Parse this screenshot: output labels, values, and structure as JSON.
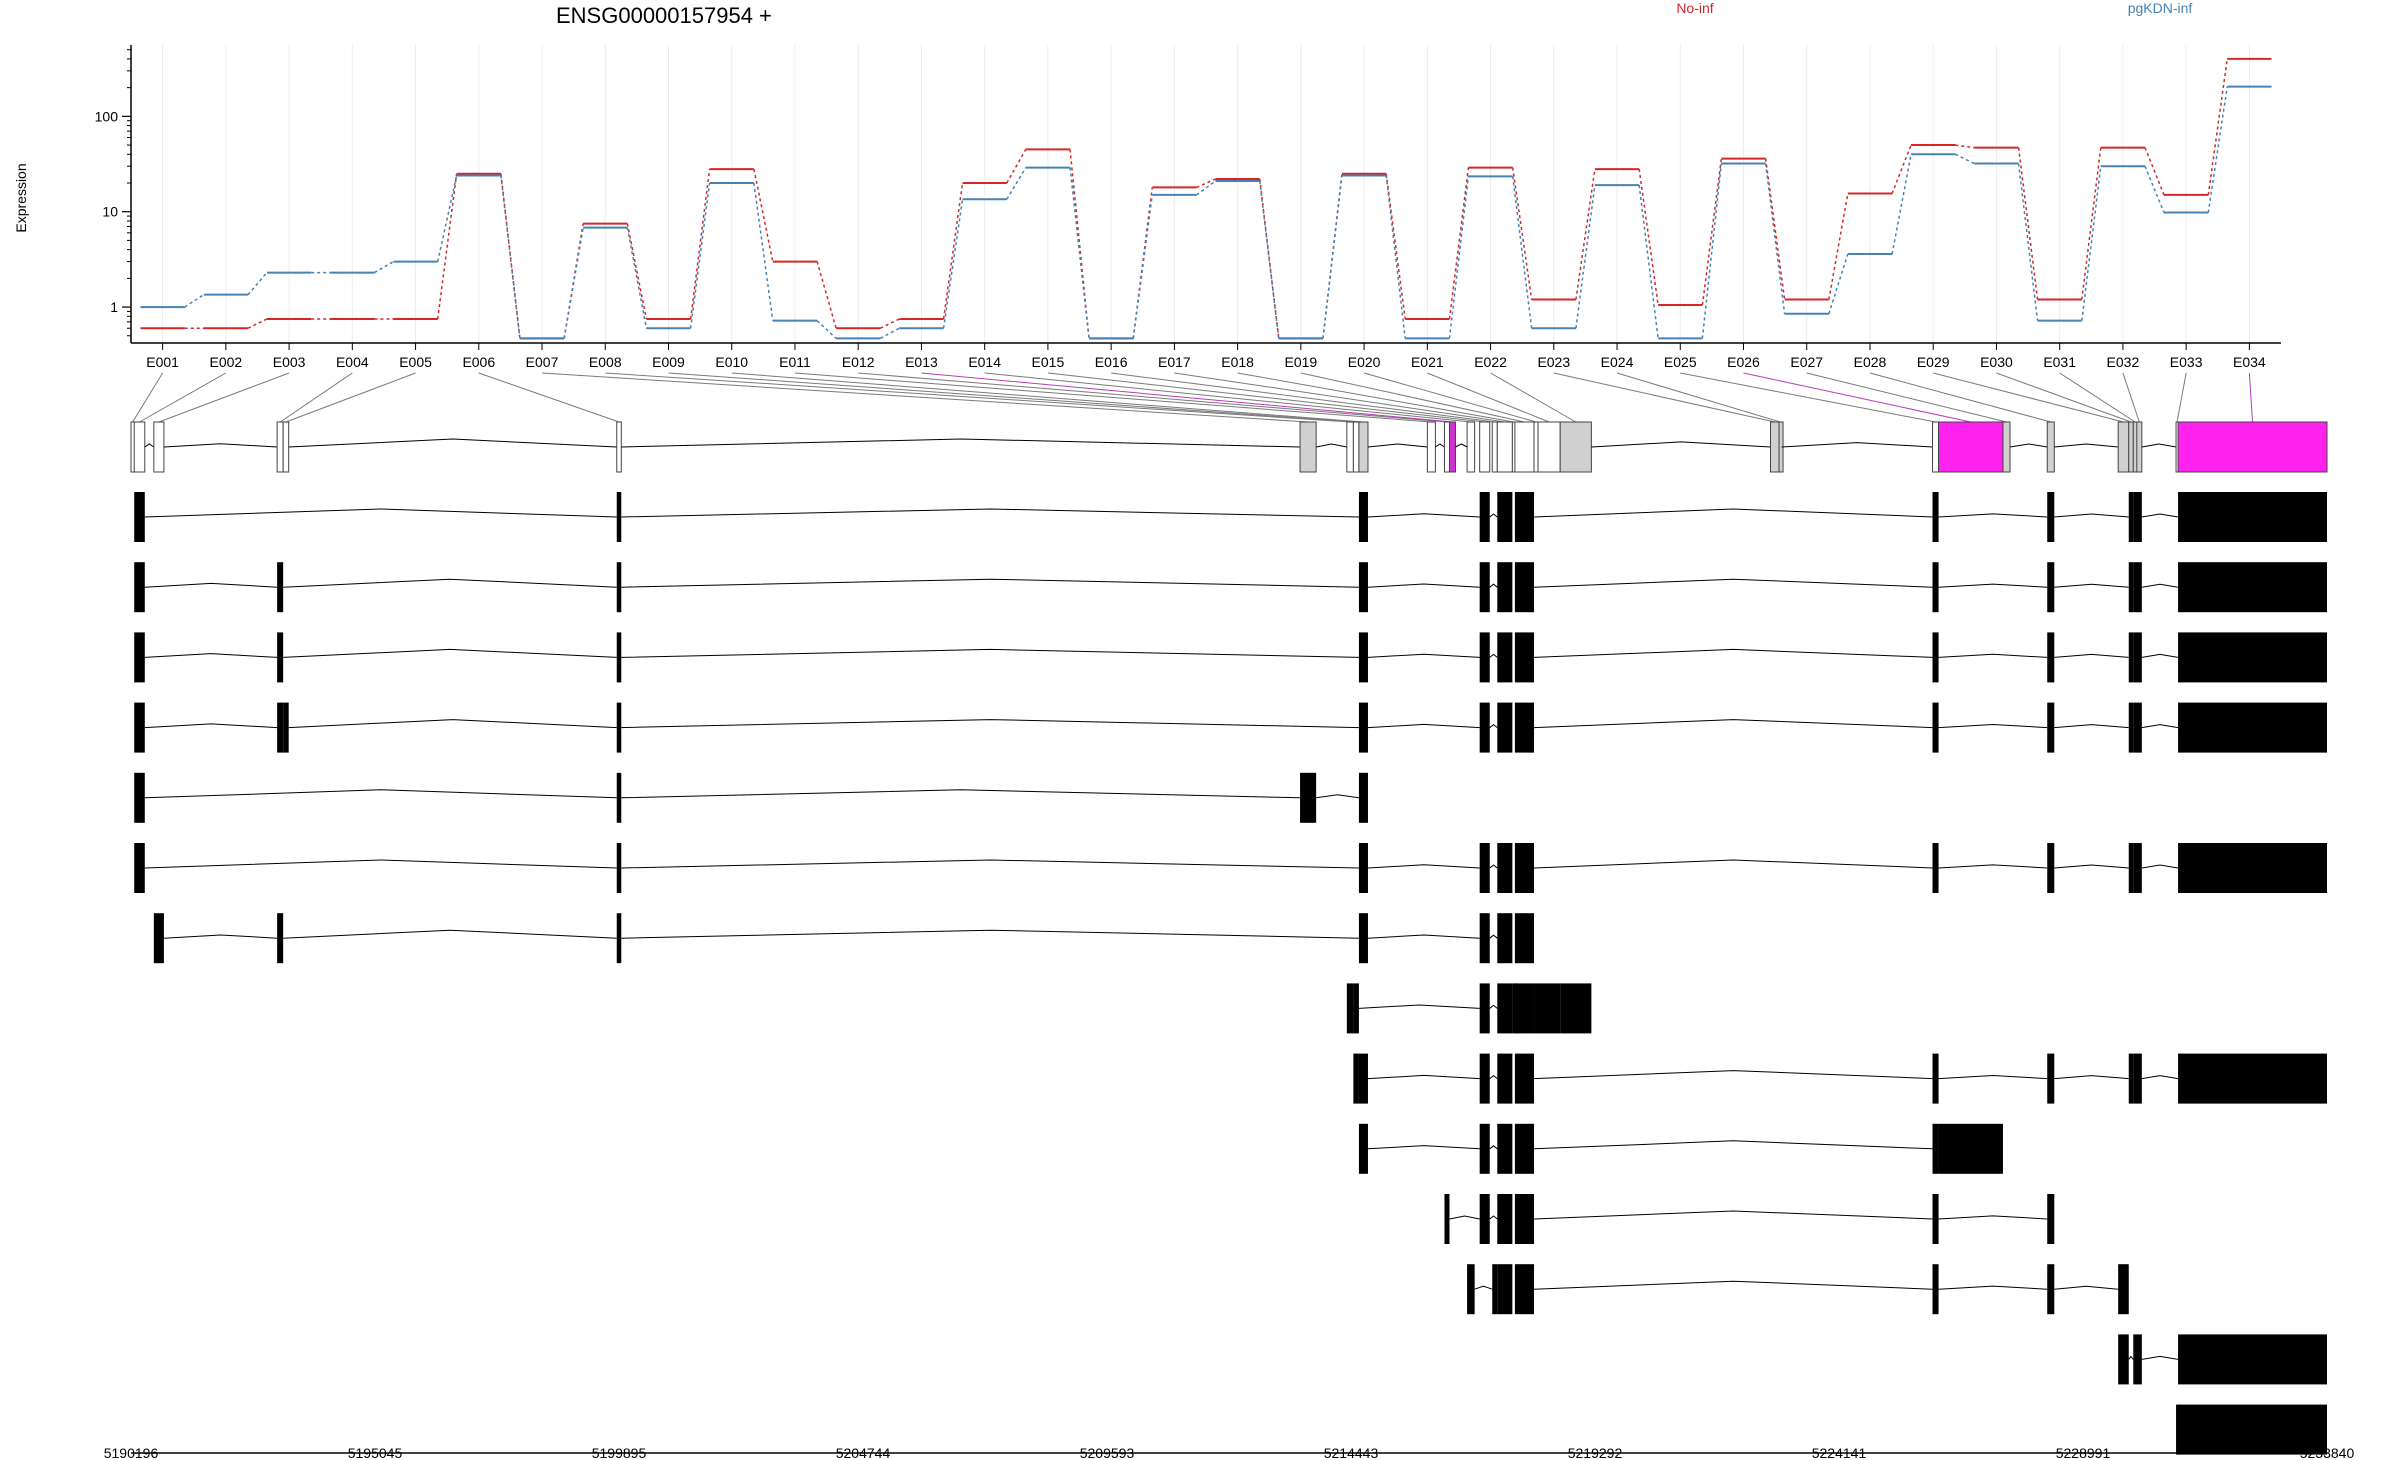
{
  "chart_data": {
    "type": "line",
    "title": "ENSG00000157954 +",
    "xlabel": "",
    "ylabel": "Expression",
    "y_scale": "log",
    "yticks": [
      "1",
      "10",
      "100"
    ],
    "grid": true,
    "legend_placement": "top",
    "series": [
      {
        "name": "No-inf",
        "color": "#d62728",
        "values": [
          0.6,
          0.6,
          0.75,
          0.75,
          0.75,
          25,
          0.47,
          7.5,
          0.75,
          28,
          3,
          0.6,
          0.75,
          20,
          45,
          0.47,
          18,
          22,
          0.47,
          25,
          0.75,
          29,
          1.2,
          28,
          1.05,
          36,
          1.2,
          15.5,
          50,
          47,
          1.2,
          47,
          15,
          400
        ]
      },
      {
        "name": "pgKDN-inf",
        "color": "#4682b4",
        "values": [
          1.0,
          1.35,
          2.3,
          2.3,
          3.0,
          24,
          0.47,
          6.8,
          0.6,
          20,
          0.72,
          0.47,
          0.6,
          13.5,
          29,
          0.47,
          15,
          21,
          0.47,
          24,
          0.47,
          23.5,
          0.6,
          19,
          0.47,
          32,
          0.85,
          3.6,
          40,
          32,
          0.72,
          30,
          9.8,
          205
        ]
      }
    ],
    "exons": [
      {
        "id": "E001",
        "start": 5190196,
        "end": 5190260
      },
      {
        "id": "E002",
        "start": 5190260,
        "end": 5190470
      },
      {
        "id": "E003",
        "start": 5190650,
        "end": 5190850
      },
      {
        "id": "E004",
        "start": 5193100,
        "end": 5193220
      },
      {
        "id": "E005",
        "start": 5193220,
        "end": 5193330
      },
      {
        "id": "E006",
        "start": 5199850,
        "end": 5199940
      },
      {
        "id": "E007",
        "start": 5213430,
        "end": 5213750
      },
      {
        "id": "E008",
        "start": 5214360,
        "end": 5214490
      },
      {
        "id": "E009",
        "start": 5214490,
        "end": 5214600
      },
      {
        "id": "E010",
        "start": 5214600,
        "end": 5214780
      },
      {
        "id": "E011",
        "start": 5215960,
        "end": 5216120
      },
      {
        "id": "E012",
        "start": 5216300,
        "end": 5216400
      },
      {
        "id": "E013",
        "start": 5216400,
        "end": 5216520
      },
      {
        "id": "E014",
        "start": 5216750,
        "end": 5216900
      },
      {
        "id": "E015",
        "start": 5217000,
        "end": 5217200
      },
      {
        "id": "E016",
        "start": 5217250,
        "end": 5217350
      },
      {
        "id": "E017",
        "start": 5217350,
        "end": 5217650
      },
      {
        "id": "E018",
        "start": 5217650,
        "end": 5217700
      },
      {
        "id": "E019",
        "start": 5217700,
        "end": 5218080
      },
      {
        "id": "E020",
        "start": 5218080,
        "end": 5218160
      },
      {
        "id": "E021",
        "start": 5218160,
        "end": 5218600
      },
      {
        "id": "E022",
        "start": 5218600,
        "end": 5219220
      },
      {
        "id": "E023",
        "start": 5222780,
        "end": 5222950
      },
      {
        "id": "E024",
        "start": 5222950,
        "end": 5223000
      },
      {
        "id": "E025",
        "start": 5226000,
        "end": 5226120
      },
      {
        "id": "E026",
        "start": 5226120,
        "end": 5227400
      },
      {
        "id": "E027",
        "start": 5227400,
        "end": 5227540
      },
      {
        "id": "E028",
        "start": 5228280,
        "end": 5228420
      },
      {
        "id": "E029",
        "start": 5229690,
        "end": 5229900
      },
      {
        "id": "E030",
        "start": 5229900,
        "end": 5229990
      },
      {
        "id": "E031",
        "start": 5229990,
        "end": 5230060
      },
      {
        "id": "E032",
        "start": 5230060,
        "end": 5230160
      },
      {
        "id": "E033",
        "start": 5230840,
        "end": 5230880
      },
      {
        "id": "E034",
        "start": 5230880,
        "end": 5233840
      }
    ],
    "gene_model_colors": {
      "E003": "#ffffff",
      "E007": "#d0d0d0",
      "E008": "#ffffff",
      "E009": "#ffffff",
      "E010": "#d0d0d0",
      "E011": "#ffffff",
      "E013": "#cc33cc",
      "E014": "#ffffff",
      "E021": "#ffffff",
      "E022": "#d0d0d0",
      "E023": "#d0d0d0",
      "E024": "#d0d0d0",
      "E026": "#ff22ee",
      "E027": "#d0d0d0",
      "E028": "#d0d0d0",
      "E029": "#d0d0d0",
      "E030": "#d0d0d0",
      "E031": "#d0d0d0",
      "E032": "#d0d0d0",
      "E034": "#ff22ee"
    },
    "transcripts": [
      [
        "E002",
        "E006",
        "E010",
        "E015",
        "E017",
        "E019",
        "E025",
        "E028",
        "E030",
        "E031",
        "E032",
        "E034"
      ],
      [
        "E002",
        "E004",
        "E006",
        "E010",
        "E015",
        "E017",
        "E019",
        "E025",
        "E028",
        "E030",
        "E031",
        "E032",
        "E034"
      ],
      [
        "E002",
        "E004",
        "E006",
        "E010",
        "E015",
        "E017",
        "E019",
        "E025",
        "E028",
        "E030",
        "E031",
        "E032",
        "E034"
      ],
      [
        "E002",
        "E004",
        "E005",
        "E006",
        "E010",
        "E015",
        "E017",
        "E019",
        "E025",
        "E028",
        "E030",
        "E031",
        "E032",
        "E034"
      ],
      [
        "E002",
        "E006",
        "E007",
        "E010"
      ],
      [
        "E002",
        "E006",
        "E010",
        "E015",
        "E017",
        "E019",
        "E025",
        "E028",
        "E030",
        "E031",
        "E032",
        "E034"
      ],
      [
        "E003",
        "E004",
        "E006",
        "E010",
        "E015",
        "E017",
        "E019"
      ],
      [
        "E008",
        "E009",
        "E015",
        "E017",
        "E018",
        "E019",
        "E020",
        "E021",
        "E022"
      ],
      [
        "E009",
        "E010",
        "E015",
        "E017",
        "E019",
        "E025",
        "E028",
        "E030",
        "E031",
        "E032",
        "E034"
      ],
      [
        "E010",
        "E015",
        "E017",
        "E019",
        "E025",
        "E026"
      ],
      [
        "E012",
        "E015",
        "E017",
        "E019",
        "E025",
        "E028"
      ],
      [
        "E014",
        "E016",
        "E017",
        "E019",
        "E025",
        "E028",
        "E029"
      ],
      [
        "E029",
        "E031",
        "E032",
        "E034"
      ],
      [
        "E033",
        "E034"
      ]
    ],
    "genomic_axis": {
      "range": [
        5190196,
        5233840
      ],
      "tick_labels": [
        "5190196",
        "5195045",
        "5199895",
        "5204744",
        "5209593",
        "5214443",
        "5219292",
        "5224141",
        "5228991",
        "5233840"
      ]
    }
  }
}
